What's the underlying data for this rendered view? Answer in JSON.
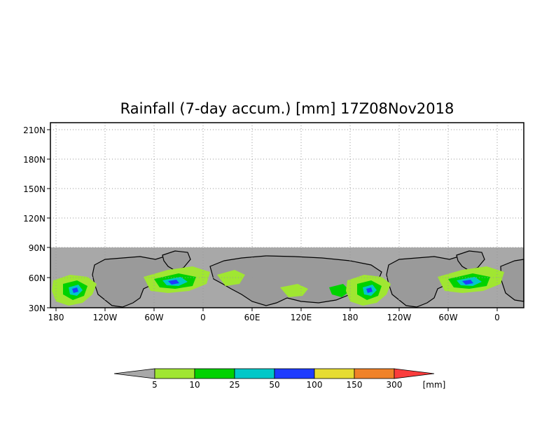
{
  "title": "Rainfall (7-day accum.) [mm] 17Z08Nov2018",
  "y_ticks": [
    "210N",
    "180N",
    "150N",
    "120N",
    "90N",
    "60N",
    "30N"
  ],
  "x_ticks": [
    "180",
    "120W",
    "60W",
    "0",
    "60E",
    "120E",
    "180",
    "120W",
    "60W",
    "0"
  ],
  "legend": {
    "bins": [
      {
        "color": "#a8a8a8"
      },
      {
        "color": "#a0e632",
        "label": "5"
      },
      {
        "color": "#00d200",
        "label": "10"
      },
      {
        "color": "#00c8c8",
        "label": "25"
      },
      {
        "color": "#1e3cff",
        "label": "50"
      },
      {
        "color": "#e6dc32",
        "label": "100"
      },
      {
        "color": "#f08228",
        "label": "150"
      },
      {
        "color": "#fa3c3c",
        "label": "300"
      }
    ],
    "unit": "[mm]"
  },
  "colors": {
    "no_data": "#a8a8a8",
    "grid": "#999999",
    "frame": "#000000"
  }
}
